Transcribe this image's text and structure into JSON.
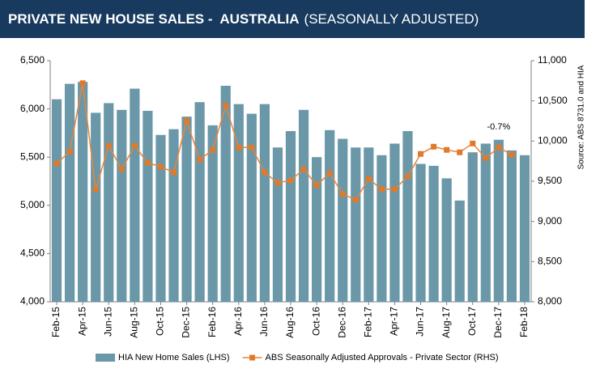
{
  "chart_data": {
    "type": "combo",
    "title": "PRIVATE NEW HOUSE SALES -  AUSTRALIA",
    "subtitle": "(SEASONALLY ADJUSTED)",
    "source": "Source: ABS 8731.0 and HIA",
    "annotations": [
      "-0.7%"
    ],
    "categories": [
      "Feb-15",
      null,
      "Apr-15",
      null,
      "Jun-15",
      null,
      "Aug-15",
      null,
      "Oct-15",
      null,
      "Dec-15",
      null,
      "Feb-16",
      null,
      "Apr-16",
      null,
      "Jun-16",
      null,
      "Aug-16",
      null,
      "Oct-16",
      null,
      "Dec-16",
      null,
      "Feb-17",
      null,
      "Apr-17",
      null,
      "Jun-17",
      null,
      "Aug-17",
      null,
      "Oct-17",
      null,
      "Dec-17",
      null,
      "Feb-18"
    ],
    "series": [
      {
        "name": "HIA New Home Sales (LHS)",
        "type": "bar",
        "color": "#6b98a8",
        "axis": "y",
        "values": [
          6100,
          6260,
          6280,
          5960,
          6060,
          5990,
          6210,
          5980,
          5730,
          5790,
          5920,
          6070,
          5830,
          6240,
          6050,
          5950,
          6050,
          5600,
          5770,
          5990,
          5500,
          5780,
          5690,
          5600,
          5600,
          5520,
          5640,
          5770,
          5430,
          5410,
          5280,
          5050,
          5550,
          5640,
          5680,
          5570,
          5520
        ]
      },
      {
        "name": "ABS Seasonally Adjusted Approvals - Private Sector (RHS)",
        "type": "line",
        "color": "#e8843a",
        "axis": "y2",
        "values": [
          9720,
          9870,
          10720,
          9400,
          9940,
          9650,
          9940,
          9730,
          9680,
          9610,
          10250,
          9770,
          9890,
          10440,
          9920,
          9920,
          9610,
          9480,
          9510,
          9650,
          9450,
          9600,
          9340,
          9270,
          9530,
          9400,
          9400,
          9560,
          9840,
          9930,
          9890,
          9860,
          9970,
          9790,
          9920,
          9830,
          null
        ]
      }
    ],
    "ylim": [
      4000,
      6500
    ],
    "yticks": [
      {
        "value": 4000,
        "label": "4,000"
      },
      {
        "value": 4500,
        "label": "4,500"
      },
      {
        "value": 5000,
        "label": "5,000"
      },
      {
        "value": 5500,
        "label": "5,500"
      },
      {
        "value": 6000,
        "label": "6,000"
      },
      {
        "value": 6500,
        "label": "6,500"
      }
    ],
    "y2lim": [
      8000,
      11000
    ],
    "y2ticks": [
      {
        "value": 8000,
        "label": "8,000"
      },
      {
        "value": 8500,
        "label": "8,500"
      },
      {
        "value": 9000,
        "label": "9,000"
      },
      {
        "value": 9500,
        "label": "9,500"
      },
      {
        "value": 10000,
        "label": "10,000"
      },
      {
        "value": 10500,
        "label": "10,500"
      },
      {
        "value": 11000,
        "label": "11,000"
      }
    ],
    "grid": false
  }
}
